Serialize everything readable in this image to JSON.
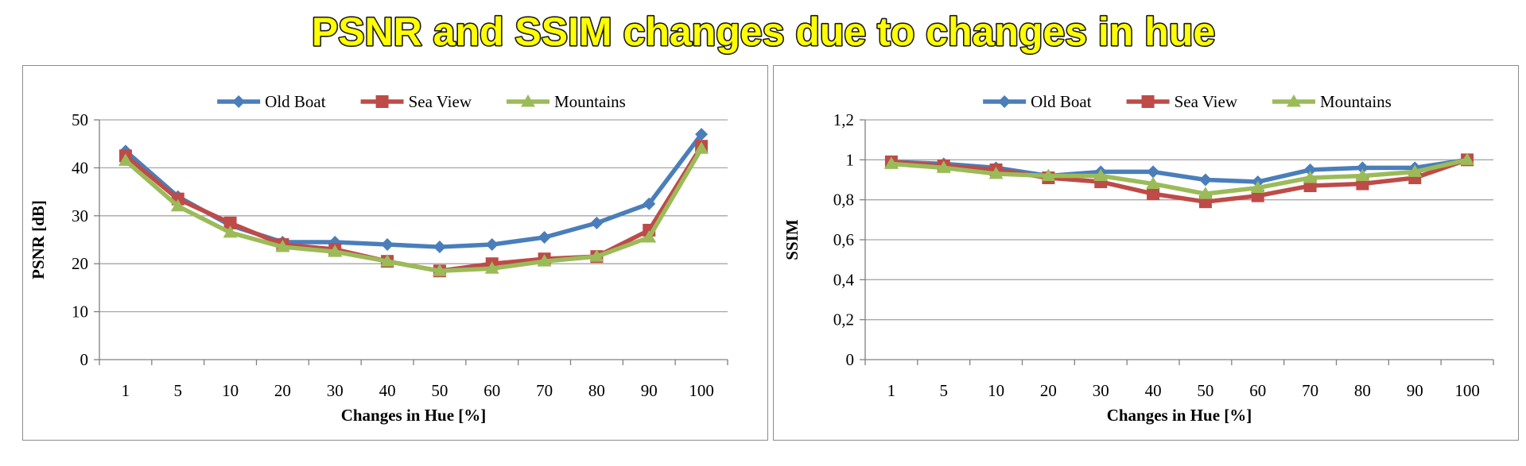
{
  "title": "PSNR and SSIM changes due to changes in hue",
  "colors": {
    "title_fill": "#ffff00",
    "title_stroke": "#1a1a1a",
    "panel_border": "#8c8c8c",
    "grid": "#a6a6a6",
    "axis": "#808080"
  },
  "chart_data": [
    {
      "type": "line",
      "title": "",
      "xlabel": "Changes in Hue [%]",
      "ylabel": "PSNR [dB]",
      "categories": [
        "1",
        "5",
        "10",
        "20",
        "30",
        "40",
        "50",
        "60",
        "70",
        "80",
        "90",
        "100"
      ],
      "ylim": [
        0,
        50
      ],
      "yticks": [
        0,
        10,
        20,
        30,
        40,
        50
      ],
      "ytick_labels": [
        "0",
        "10",
        "20",
        "30",
        "40",
        "50"
      ],
      "grid": true,
      "legend_position": "top",
      "series": [
        {
          "name": "Old Boat",
          "color": "#4a7ebb",
          "marker": "diamond",
          "values": [
            43.5,
            34,
            28,
            24.5,
            24.5,
            24,
            23.5,
            24,
            25.5,
            28.5,
            32.5,
            47
          ]
        },
        {
          "name": "Sea View",
          "color": "#be4b48",
          "marker": "square",
          "values": [
            42.5,
            33.5,
            28.5,
            24,
            23,
            20.5,
            18.5,
            20,
            21,
            21.5,
            27,
            44.5
          ]
        },
        {
          "name": "Mountains",
          "color": "#9bbb59",
          "marker": "triangle",
          "values": [
            41.5,
            32,
            26.5,
            23.5,
            22.5,
            20.5,
            18.5,
            19,
            20.5,
            21.5,
            25.5,
            44
          ]
        }
      ]
    },
    {
      "type": "line",
      "title": "",
      "xlabel": "Changes in Hue [%]",
      "ylabel": "SSIM",
      "categories": [
        "1",
        "5",
        "10",
        "20",
        "30",
        "40",
        "50",
        "60",
        "70",
        "80",
        "90",
        "100"
      ],
      "ylim": [
        0,
        1.2
      ],
      "yticks": [
        0,
        0.2,
        0.4,
        0.6,
        0.8,
        1,
        1.2
      ],
      "ytick_labels": [
        "0",
        "0,2",
        "0,4",
        "0,6",
        "0,8",
        "1",
        "1,2"
      ],
      "grid": true,
      "legend_position": "top",
      "series": [
        {
          "name": "Old Boat",
          "color": "#4a7ebb",
          "marker": "diamond",
          "values": [
            0.99,
            0.98,
            0.96,
            0.92,
            0.94,
            0.94,
            0.9,
            0.89,
            0.95,
            0.96,
            0.96,
            1.0
          ]
        },
        {
          "name": "Sea View",
          "color": "#be4b48",
          "marker": "square",
          "values": [
            0.99,
            0.97,
            0.95,
            0.91,
            0.89,
            0.83,
            0.79,
            0.82,
            0.87,
            0.88,
            0.91,
            1.0
          ]
        },
        {
          "name": "Mountains",
          "color": "#9bbb59",
          "marker": "triangle",
          "values": [
            0.98,
            0.96,
            0.93,
            0.92,
            0.92,
            0.88,
            0.83,
            0.86,
            0.91,
            0.92,
            0.94,
            1.0
          ]
        }
      ]
    }
  ]
}
